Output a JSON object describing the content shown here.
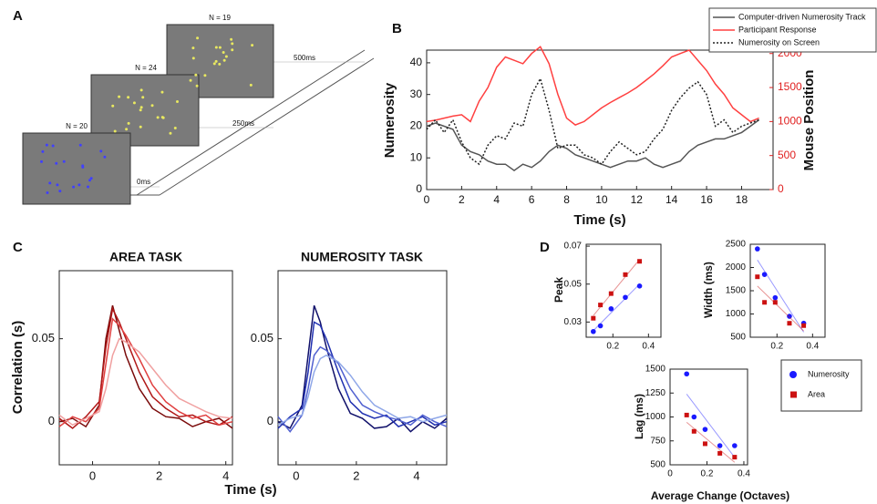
{
  "panel_labels": [
    "A",
    "B",
    "C",
    "D"
  ],
  "schematic": {
    "screens": [
      {
        "label": "N = 19",
        "time": "500ms"
      },
      {
        "label": "N = 24",
        "time": "250ms"
      },
      {
        "label": "N = 20",
        "time": "0ms"
      }
    ]
  },
  "chart_data": [
    {
      "type": "line",
      "xlabel": "Time (s)",
      "ylabel": "Numerosity",
      "y2label": "Mouse Position",
      "x": [
        0,
        0.5,
        1,
        1.5,
        2,
        2.5,
        3,
        3.5,
        4,
        4.5,
        5,
        5.5,
        6,
        6.5,
        7,
        7.5,
        8,
        8.5,
        9,
        9.5,
        10,
        10.5,
        11,
        11.5,
        12,
        12.5,
        13,
        13.5,
        14,
        14.5,
        15,
        15.5,
        16,
        16.5,
        17,
        17.5,
        18,
        18.5,
        19
      ],
      "xlim": [
        0,
        19.8
      ],
      "xticks": [
        0,
        2,
        4,
        6,
        8,
        10,
        12,
        14,
        16,
        18
      ],
      "ylim": [
        0,
        44
      ],
      "yticks": [
        0,
        10,
        20,
        30,
        40
      ],
      "y2lim": [
        0,
        2050
      ],
      "y2ticks": [
        0,
        500,
        1000,
        1500,
        2000
      ],
      "y2color": "#e02020",
      "series": [
        {
          "name": "Computer-driven Numerosity Track",
          "color": "#555555",
          "dash": "solid",
          "values": [
            20,
            21,
            20,
            19,
            14,
            12,
            11,
            9,
            8,
            8,
            6,
            8,
            7,
            9,
            12,
            14,
            13,
            11,
            10,
            9,
            8,
            7,
            8,
            9,
            9,
            10,
            8,
            7,
            8,
            9,
            12,
            14,
            15,
            16,
            16,
            17,
            18,
            20,
            22
          ]
        },
        {
          "name": "Participant Response",
          "color": "#ff4040",
          "dash": "solid",
          "axis": "y2",
          "values": [
            1000,
            1020,
            1050,
            1080,
            1100,
            1000,
            1300,
            1500,
            1800,
            1950,
            1900,
            1850,
            2000,
            2100,
            1850,
            1400,
            1050,
            950,
            1000,
            1100,
            1200,
            1280,
            1350,
            1420,
            1500,
            1600,
            1700,
            1820,
            1950,
            2000,
            2050,
            1900,
            1750,
            1550,
            1400,
            1200,
            1100,
            1000,
            1050
          ]
        },
        {
          "name": "Numerosity on Screen",
          "color": "#222222",
          "dash": "dotted",
          "values": [
            19,
            22,
            18,
            22,
            15,
            10,
            8,
            14,
            17,
            16,
            21,
            20,
            30,
            35,
            25,
            13,
            14,
            14,
            11,
            10,
            8,
            12,
            15,
            13,
            11,
            12,
            16,
            19,
            25,
            29,
            32,
            34,
            30,
            20,
            22,
            18,
            20,
            21,
            22
          ]
        }
      ]
    },
    {
      "type": "line",
      "title": "AREA TASK",
      "xlabel": "Time (s)",
      "ylabel": "Correlation (s)",
      "x": [
        -1,
        -0.6,
        -0.2,
        0.2,
        0.4,
        0.6,
        0.8,
        1.0,
        1.4,
        1.8,
        2.2,
        2.6,
        3.0,
        3.4,
        3.8,
        4.2
      ],
      "xlim": [
        -1,
        4.2
      ],
      "xticks": [
        0,
        2,
        4
      ],
      "ylim": [
        -0.026,
        0.091
      ],
      "yticks": [
        0,
        0.05
      ],
      "series": [
        {
          "color": "#7a0a0a",
          "values": [
            0,
            0.002,
            -0.003,
            0.01,
            0.05,
            0.07,
            0.055,
            0.04,
            0.02,
            0.008,
            0.003,
            0.002,
            -0.003,
            0,
            0.002,
            -0.004
          ]
        },
        {
          "color": "#b01818",
          "values": [
            0.002,
            -0.004,
            0.003,
            0.012,
            0.045,
            0.068,
            0.06,
            0.05,
            0.03,
            0.015,
            0.008,
            0.003,
            0.004,
            0,
            -0.002,
            0.003
          ]
        },
        {
          "color": "#e04040",
          "values": [
            -0.003,
            0.003,
            0,
            0.008,
            0.035,
            0.062,
            0.058,
            0.052,
            0.038,
            0.022,
            0.012,
            0.006,
            0.002,
            0.004,
            -0.002,
            0
          ]
        },
        {
          "color": "#f0a0a0",
          "values": [
            0.004,
            -0.002,
            0.002,
            0.006,
            0.02,
            0.04,
            0.05,
            0.048,
            0.042,
            0.032,
            0.022,
            0.014,
            0.01,
            0.006,
            0.003,
            0.002
          ]
        }
      ]
    },
    {
      "type": "line",
      "title": "NUMEROSITY TASK",
      "x": [
        -0.6,
        -0.2,
        0.2,
        0.4,
        0.6,
        0.8,
        1.0,
        1.4,
        1.8,
        2.2,
        2.6,
        3.0,
        3.4,
        3.8,
        4.2,
        4.6,
        5.0
      ],
      "xlim": [
        -0.6,
        5
      ],
      "xticks": [
        0,
        2,
        4
      ],
      "ylim": [
        -0.026,
        0.091
      ],
      "yticks": [
        0,
        0.05
      ],
      "series": [
        {
          "color": "#10106a",
          "values": [
            0,
            -0.004,
            0.01,
            0.04,
            0.07,
            0.06,
            0.045,
            0.02,
            0.005,
            0.002,
            -0.004,
            -0.003,
            0.002,
            -0.006,
            0,
            -0.004,
            0.002
          ]
        },
        {
          "color": "#2030b0",
          "values": [
            -0.004,
            0.003,
            0.008,
            0.03,
            0.06,
            0.058,
            0.05,
            0.03,
            0.012,
            0.005,
            0.002,
            0.004,
            -0.003,
            0,
            0.003,
            -0.002,
            0
          ]
        },
        {
          "color": "#5060d0",
          "values": [
            0.003,
            -0.006,
            0.004,
            0.02,
            0.04,
            0.045,
            0.043,
            0.035,
            0.02,
            0.01,
            0.006,
            0.003,
            0.001,
            -0.002,
            0.004,
            0,
            -0.003
          ]
        },
        {
          "color": "#90a8e8",
          "values": [
            -0.002,
            0.002,
            0.004,
            0.015,
            0.03,
            0.038,
            0.04,
            0.036,
            0.028,
            0.018,
            0.01,
            0.006,
            0.002,
            0.003,
            0,
            0.002,
            0.004
          ]
        }
      ]
    },
    {
      "type": "scatter",
      "ylabel": "Peak",
      "x": [
        0.09,
        0.13,
        0.19,
        0.27,
        0.35
      ],
      "xlim": [
        0.05,
        0.47
      ],
      "xticks": [
        0.2,
        0.4
      ],
      "ylim": [
        0.022,
        0.071
      ],
      "yticks": [
        0.03,
        0.05,
        0.07
      ],
      "series": [
        {
          "color": "#1a1aff",
          "marker": "circle",
          "values": [
            0.025,
            0.028,
            0.037,
            0.043,
            0.049
          ]
        },
        {
          "color": "#cc1111",
          "marker": "square",
          "values": [
            0.032,
            0.039,
            0.045,
            0.055,
            0.062
          ]
        }
      ]
    },
    {
      "type": "scatter",
      "ylabel": "Width (ms)",
      "x": [
        0.09,
        0.13,
        0.19,
        0.27,
        0.35
      ],
      "xlim": [
        0.05,
        0.47
      ],
      "xticks": [
        0.2,
        0.4
      ],
      "ylim": [
        500,
        2500
      ],
      "yticks": [
        500,
        1000,
        1500,
        2000,
        2500
      ],
      "series": [
        {
          "color": "#1a1aff",
          "marker": "circle",
          "values": [
            2400,
            1850,
            1350,
            950,
            800
          ]
        },
        {
          "color": "#cc1111",
          "marker": "square",
          "values": [
            1800,
            1250,
            1250,
            800,
            750
          ]
        }
      ]
    },
    {
      "type": "scatter",
      "ylabel": "Lag (ms)",
      "xlabel": "Average Change (Octaves)",
      "x": [
        0.09,
        0.13,
        0.19,
        0.27,
        0.35
      ],
      "xlim": [
        0,
        0.42
      ],
      "xticks": [
        0,
        0.2,
        0.4
      ],
      "ylim": [
        500,
        1500
      ],
      "yticks": [
        500,
        750,
        1000,
        1250,
        1500
      ],
      "series": [
        {
          "name": "Numerosity",
          "color": "#1a1aff",
          "marker": "circle",
          "values": [
            1450,
            1000,
            870,
            700,
            700
          ]
        },
        {
          "name": "Area",
          "color": "#cc1111",
          "marker": "square",
          "values": [
            1020,
            850,
            720,
            620,
            580
          ]
        }
      ]
    }
  ]
}
